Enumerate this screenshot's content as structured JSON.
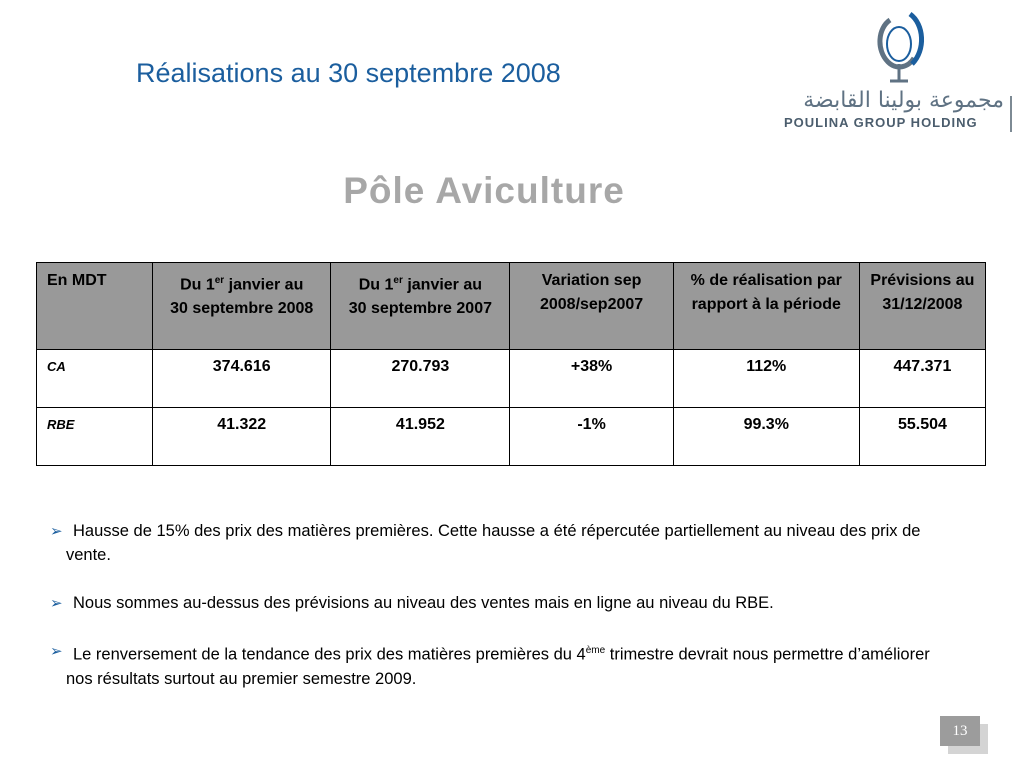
{
  "slide": {
    "title": "Réalisations au 30 septembre 2008",
    "subtitle": "Pôle Aviculture",
    "page_number": "13"
  },
  "logo": {
    "arabic_text": "مجموعة بولينا القابضة",
    "latin_text": "Poulina Group Holding",
    "brand_color": "#1b5e9e"
  },
  "table": {
    "header": {
      "col0": "En MDT",
      "col1_a": "Du 1",
      "col1_sup": "er",
      "col1_b": " janvier au",
      "col1_c": "30 septembre 2008",
      "col2_a": "Du 1",
      "col2_sup": "er",
      "col2_b": " janvier au",
      "col2_c": "30 septembre 2007",
      "col3": "Variation sep 2008/sep2007",
      "col4": "% de réalisation par rapport à la période",
      "col5": "Prévisions au 31/12/2008"
    },
    "rows": [
      {
        "label": "CA",
        "v1": "374.616",
        "v2": "270.793",
        "v3": "+38%",
        "v4": "112%",
        "v5": "447.371"
      },
      {
        "label": "RBE",
        "v1": "41.322",
        "v2": "41.952",
        "v3": "-1%",
        "v4": "99.3%",
        "v5": "55.504"
      }
    ],
    "header_bg": "#999999"
  },
  "bullets": {
    "arrow": "➢",
    "b1": "Hausse de 15% des prix des matières premières. Cette hausse a été répercutée partiellement au niveau des prix de vente.",
    "b2": "Nous sommes au-dessus des prévisions au niveau  des ventes mais en ligne au niveau du RBE.",
    "b3_a": "Le renversement de la tendance des prix des matières premières du 4",
    "b3_sup": "ème",
    "b3_b": " trimestre devrait nous permettre d’améliorer nos résultats surtout au premier semestre 2009."
  }
}
